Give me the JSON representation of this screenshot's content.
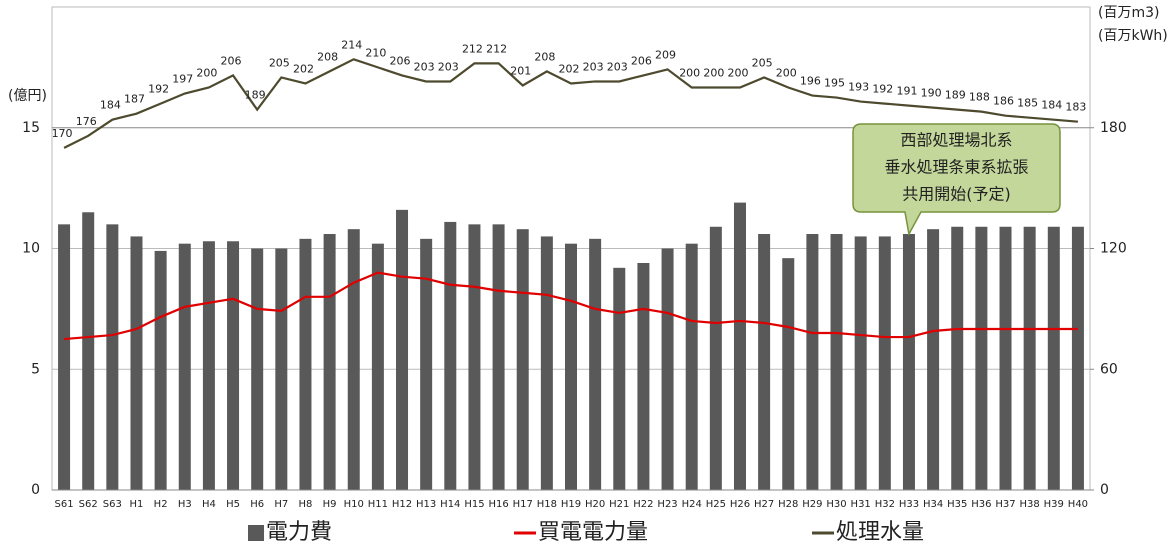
{
  "chart_data": {
    "type": "bar-line",
    "y_unit": "(億円)",
    "y2_units": [
      "(百万m3)",
      "(百万kWh)"
    ],
    "categories": [
      "S61",
      "S62",
      "S63",
      "H1",
      "H2",
      "H3",
      "H4",
      "H5",
      "H6",
      "H7",
      "H8",
      "H9",
      "H10",
      "H11",
      "H12",
      "H13",
      "H14",
      "H15",
      "H16",
      "H17",
      "H18",
      "H19",
      "H20",
      "H21",
      "H22",
      "H23",
      "H24",
      "H25",
      "H26",
      "H27",
      "H28",
      "H29",
      "H30",
      "H31",
      "H32",
      "H33",
      "H34",
      "H35",
      "H36",
      "H37",
      "H38",
      "H39",
      "H40"
    ],
    "series": [
      {
        "name": "電力費",
        "type": "bar",
        "color": "#595959",
        "values": [
          11.0,
          11.5,
          11.0,
          10.5,
          9.9,
          10.2,
          10.3,
          10.3,
          10.0,
          10.0,
          10.4,
          10.6,
          10.8,
          10.2,
          11.6,
          10.4,
          11.1,
          11.0,
          11.0,
          10.8,
          10.5,
          10.2,
          10.4,
          9.2,
          9.4,
          10.0,
          10.2,
          10.9,
          11.9,
          10.6,
          9.6,
          10.6,
          10.6,
          10.5,
          10.5,
          10.6,
          10.8,
          10.9,
          10.9,
          10.9,
          10.9,
          10.9,
          10.9
        ]
      },
      {
        "name": "買電電力量",
        "type": "line",
        "axis": "y2",
        "color": "#e00000",
        "values": [
          75,
          76,
          77,
          80,
          86,
          91,
          93,
          95,
          90,
          89,
          96,
          96,
          103,
          108,
          106,
          105,
          102,
          101,
          99,
          98,
          97,
          94,
          90,
          88,
          90,
          88,
          84,
          83,
          84,
          83,
          81,
          78,
          78,
          77,
          76,
          76,
          79,
          80,
          80,
          80,
          80,
          80,
          80
        ]
      },
      {
        "name": "処理水量",
        "type": "line",
        "axis": "y2",
        "color": "#4d4a2e",
        "data_labels": true,
        "values": [
          170,
          176,
          184,
          187,
          192,
          197,
          200,
          206,
          189,
          205,
          202,
          208,
          214,
          210,
          206,
          203,
          203,
          212,
          212,
          201,
          208,
          202,
          203,
          203,
          206,
          209,
          200,
          200,
          200,
          205,
          200,
          196,
          195,
          193,
          192,
          191,
          190,
          189,
          188,
          186,
          185,
          184,
          183
        ]
      }
    ],
    "ylim": [
      0,
      20
    ],
    "yticks": [
      0,
      5,
      10,
      15
    ],
    "y2lim": [
      0,
      240
    ],
    "y2ticks": [
      0,
      60,
      120,
      180
    ],
    "annotation": {
      "lines": [
        "西部処理場北系",
        "垂水処理条東系拡張",
        "共用開始(予定)"
      ],
      "category": 35
    }
  }
}
